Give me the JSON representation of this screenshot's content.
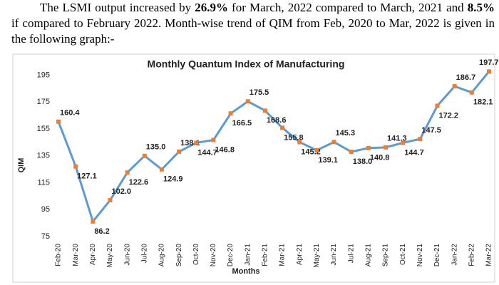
{
  "paragraph": [
    {
      "text": "The LSMI output increased by ",
      "bold": false
    },
    {
      "text": "26.9%",
      "bold": true
    },
    {
      "text": " for March, 2022 compared to March, 2021 and ",
      "bold": false
    },
    {
      "text": "8.5%",
      "bold": true
    },
    {
      "text": " if compared to February 2022. Month-wise trend of QIM from Feb, 2020 to Mar, 2022 is given in the following graph:-",
      "bold": false
    }
  ],
  "chart_data": {
    "type": "line",
    "title": "Monthly Quantum Index of Manufacturing",
    "x_label": "Months",
    "y_label": "QIM",
    "categories": [
      "Feb-20",
      "Mar-20",
      "Apr-20",
      "May-20",
      "Jun-20",
      "Jul-20",
      "Aug-20",
      "Sep-20",
      "Oct-20",
      "Nov-20",
      "Dec-20",
      "Jan-21",
      "Feb-21",
      "Mar-21",
      "Apr-21",
      "May-21",
      "Jun-21",
      "Jul-21",
      "Aug-21",
      "Sep-21",
      "Oct-21",
      "Nov-21",
      "Dec-21",
      "Jan-22",
      "Feb-22",
      "Mar-22"
    ],
    "values": [
      160.4,
      127.1,
      86.2,
      102.0,
      122.6,
      135.0,
      124.9,
      138.1,
      144.7,
      146.8,
      166.5,
      175.5,
      168.6,
      155.8,
      145.2,
      139.1,
      145.3,
      138.0,
      140.8,
      141.3,
      144.7,
      147.5,
      172.2,
      186.7,
      182.1,
      197.7
    ],
    "value_labels": [
      "160.4",
      "127.1",
      "86.2",
      "102.0",
      "122.6",
      "135.0",
      "124.9",
      "138.1",
      "144.7",
      "146.8",
      "166.5",
      "175.5",
      "168.6",
      "155.8",
      "145.2",
      "139.1",
      "145.3",
      "138.0",
      "140.8",
      "141.3",
      "144.7",
      "147.5",
      "172.2",
      "186.7",
      "182.1",
      "197.7"
    ],
    "color": "#5b9bd5",
    "marker_color": "#ed7d31",
    "ylim": [
      75,
      200
    ],
    "yticks": [
      75,
      95,
      115,
      135,
      155,
      175,
      195
    ],
    "grid": false
  }
}
